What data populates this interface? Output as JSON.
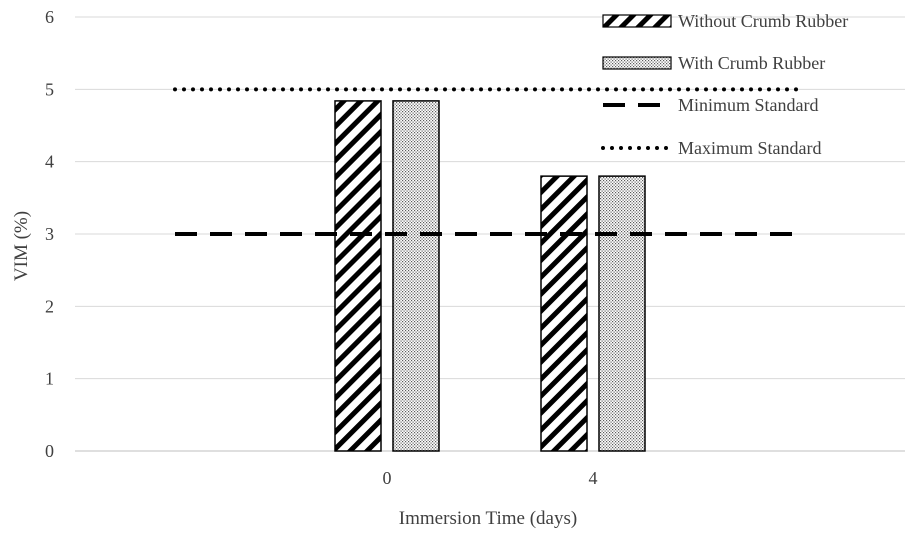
{
  "chart_data": {
    "type": "bar",
    "xlabel": "Immersion Time (days)",
    "ylabel": "VIM (%)",
    "ylim": [
      0,
      6
    ],
    "yticks": [
      0,
      1,
      2,
      3,
      4,
      5,
      6
    ],
    "categories": [
      "0",
      "4"
    ],
    "series": [
      {
        "name": "Without Crumb Rubber",
        "pattern": "diagonal-hatch",
        "values": [
          4.84,
          3.8
        ]
      },
      {
        "name": "With Crumb Rubber",
        "pattern": "dots",
        "values": [
          4.84,
          3.8
        ]
      }
    ],
    "reference_lines": [
      {
        "name": "Minimum Standard",
        "value": 3,
        "style": "dashed"
      },
      {
        "name": "Maximum Standard",
        "value": 5,
        "style": "dotted"
      }
    ],
    "grid": true,
    "legend": "top-right",
    "colors": {
      "axis_text": "#404040",
      "grid": "#d9d9d9",
      "bar_edge": "#000000"
    }
  }
}
